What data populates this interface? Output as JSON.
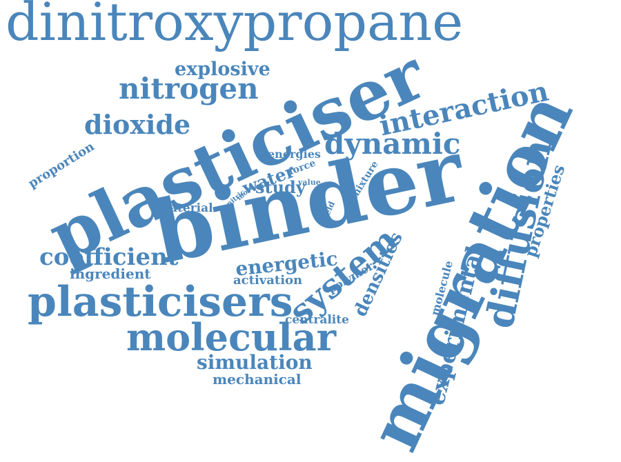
{
  "cloud": {
    "color": "#4a86bb",
    "words": [
      "dinitroxypropane",
      "explosive",
      "nitrogen",
      "plasticiser",
      "interaction",
      "dioxide",
      "dynamic",
      "energies",
      "force",
      "water",
      "proportion",
      "mixture",
      "value",
      "nitric",
      "more",
      "study",
      "diffusion",
      "properties",
      "binder",
      "material",
      "field",
      "migration",
      "coefficient",
      "ingredient",
      "energetic",
      "system",
      "densities",
      "activation",
      "polymer",
      "molecule",
      "plasticisers",
      "experimental",
      "centralite",
      "molecular",
      "simulation",
      "mechanical"
    ]
  }
}
